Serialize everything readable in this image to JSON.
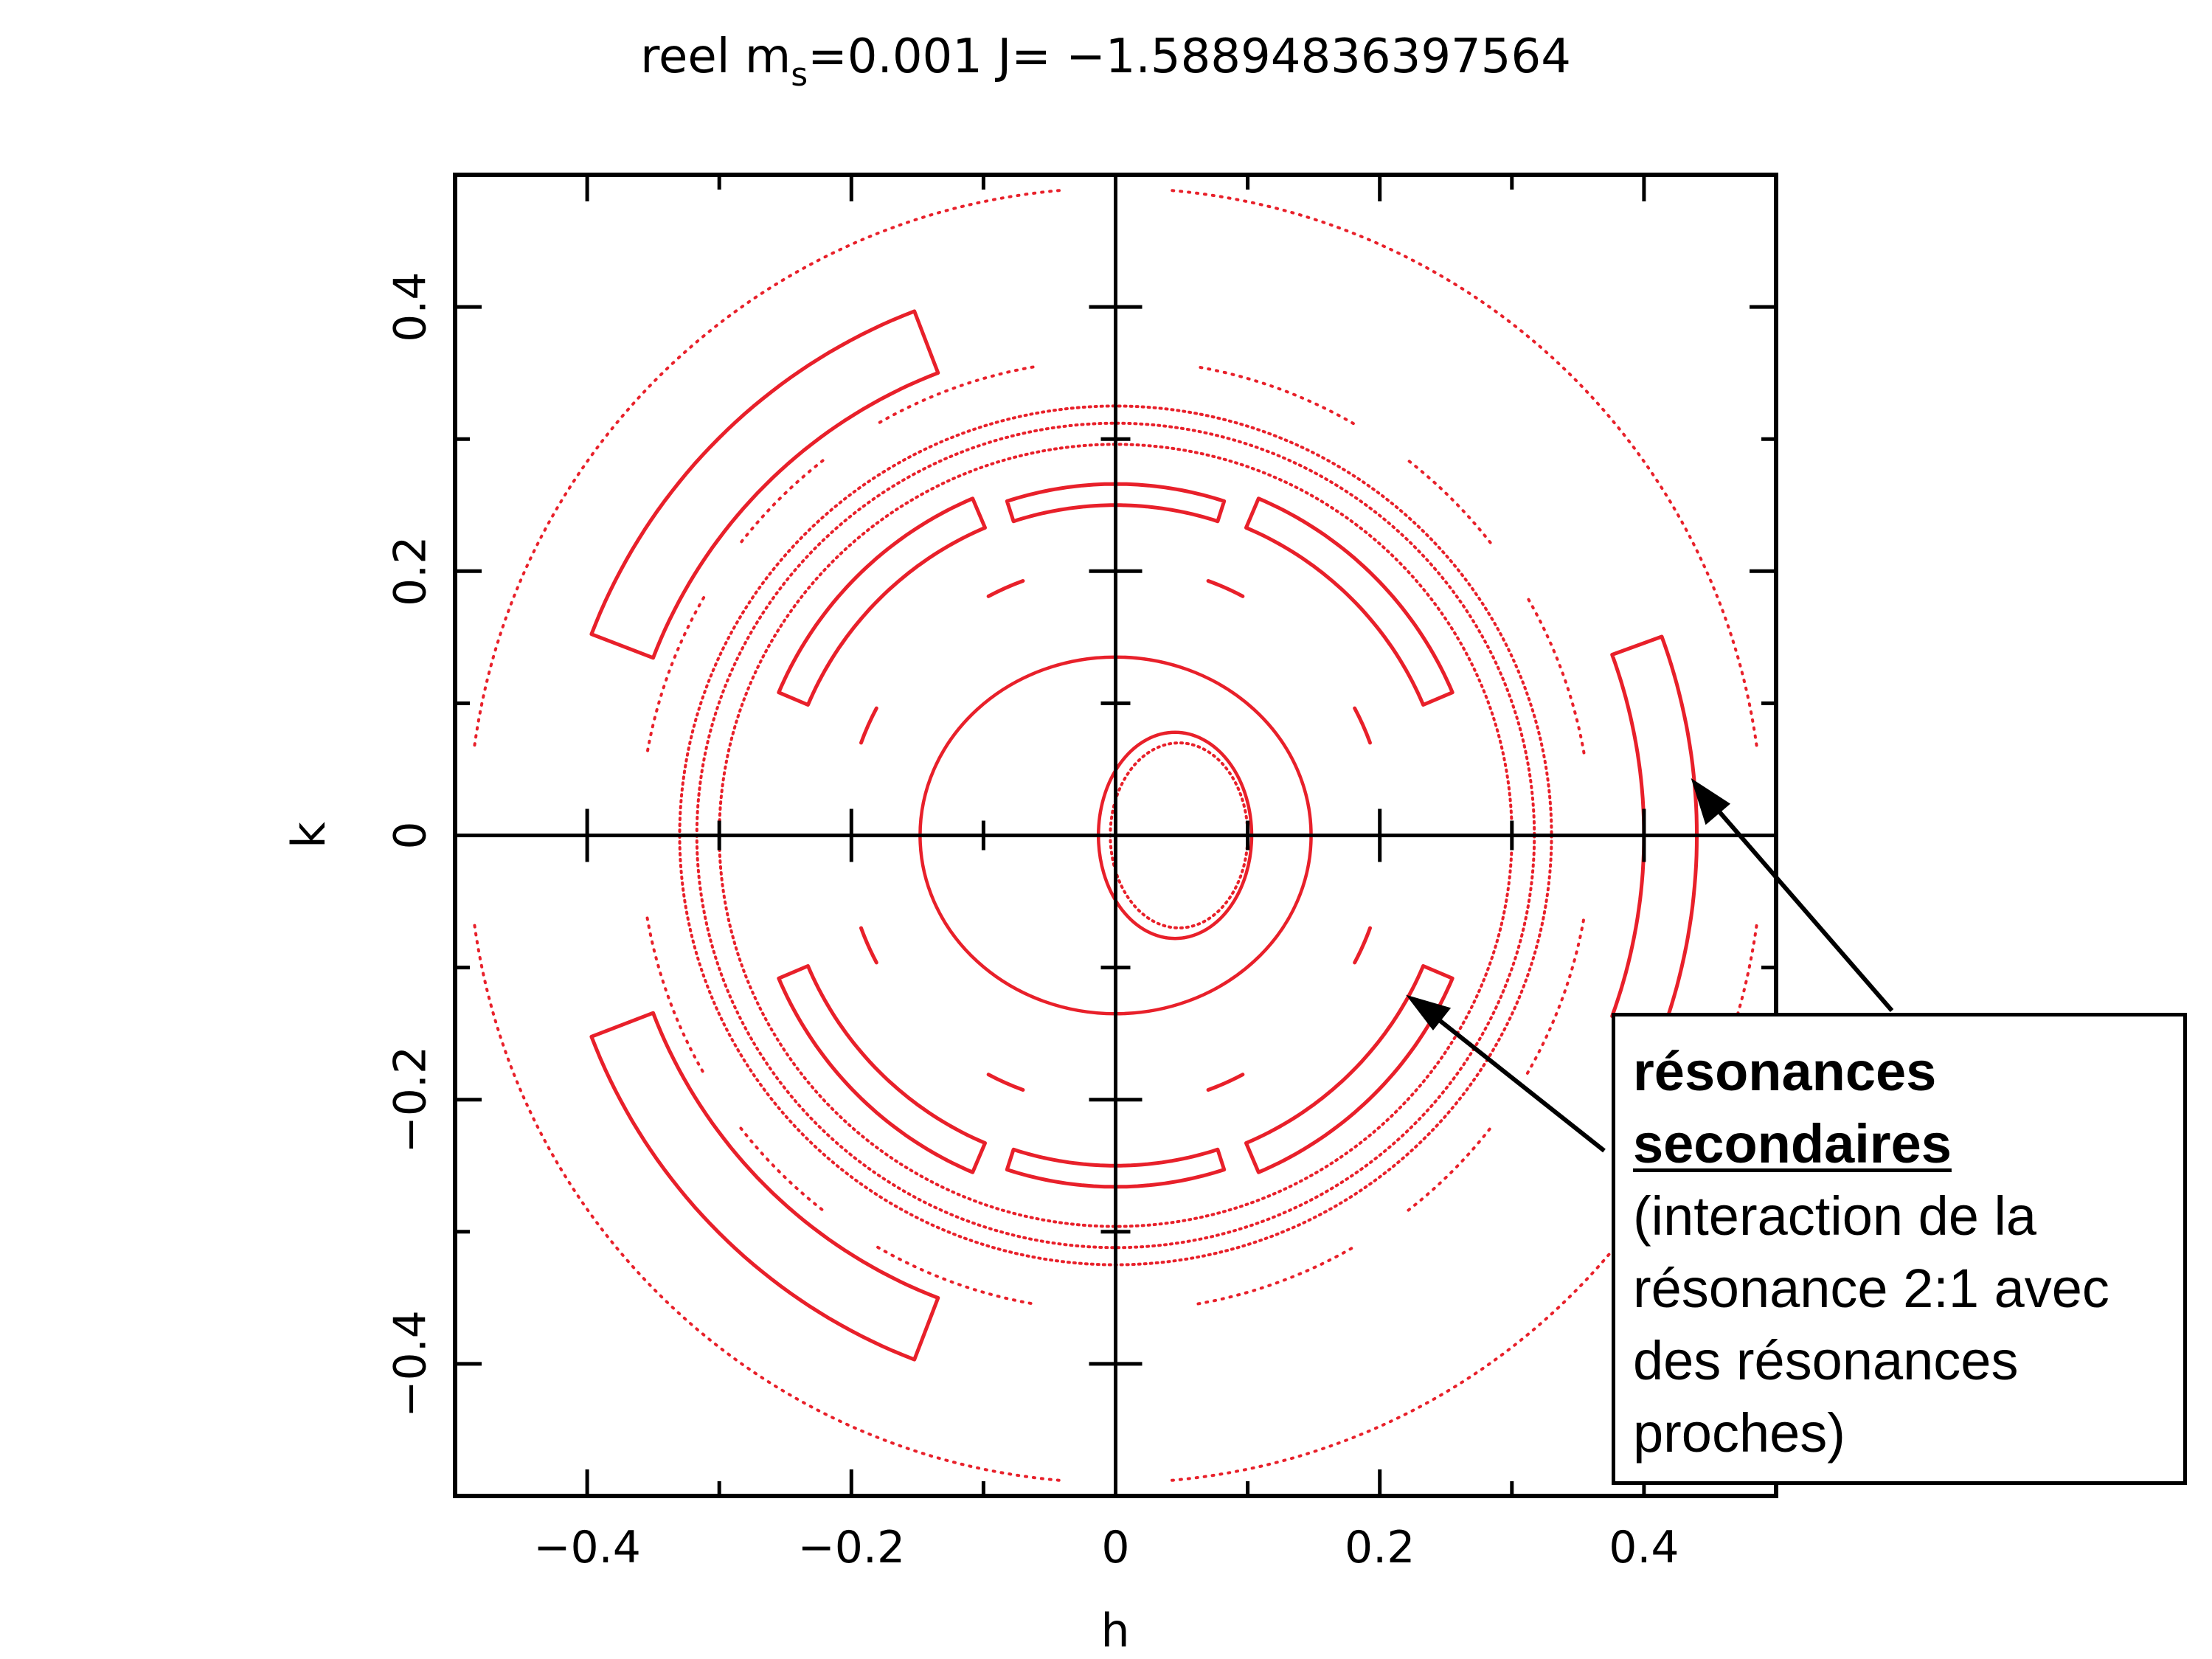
{
  "chart_data": {
    "type": "scatter",
    "title_prefix": "reel m",
    "title_sub": "s",
    "title_suffix": "=0.001 J= −1.58894836397564",
    "xlabel": "h",
    "ylabel": "k",
    "xlim": [
      -0.5,
      0.5
    ],
    "ylim": [
      -0.5,
      0.5
    ],
    "xticks": [
      {
        "value": -0.4,
        "label": "−0.4"
      },
      {
        "value": -0.2,
        "label": "−0.2"
      },
      {
        "value": 0,
        "label": "0"
      },
      {
        "value": 0.2,
        "label": "0.2"
      },
      {
        "value": 0.4,
        "label": "0.4"
      }
    ],
    "yticks": [
      {
        "value": -0.4,
        "label": "−0.4"
      },
      {
        "value": -0.2,
        "label": "−0.2"
      },
      {
        "value": 0,
        "label": "0"
      },
      {
        "value": 0.2,
        "label": "0.2"
      },
      {
        "value": 0.4,
        "label": "0.4"
      }
    ],
    "minor_ticks": [
      -0.3,
      -0.1,
      0.1,
      0.3
    ],
    "zero_lines": true,
    "grid": false,
    "color": "#e8202a",
    "series": [
      {
        "kind": "ellipse",
        "cx": 0.0,
        "cy": 0.0,
        "rx": 0.148,
        "ry": 0.135,
        "dotted": false
      },
      {
        "kind": "ellipse",
        "cx": 0.045,
        "cy": 0.0,
        "rx": 0.058,
        "ry": 0.078,
        "dotted": false
      },
      {
        "kind": "ellipse",
        "cx": 0.048,
        "cy": 0.0,
        "rx": 0.052,
        "ry": 0.07,
        "dotted": true
      },
      {
        "kind": "ellipse",
        "cx": 0.0,
        "cy": 0.0,
        "rx": 0.33,
        "ry": 0.325,
        "dotted": true
      },
      {
        "kind": "ellipse",
        "cx": 0.0,
        "cy": 0.0,
        "rx": 0.317,
        "ry": 0.312,
        "dotted": true
      },
      {
        "kind": "ellipse",
        "cx": 0.0,
        "cy": 0.0,
        "rx": 0.3,
        "ry": 0.296,
        "dotted": true
      },
      {
        "kind": "arcs",
        "r": 0.49,
        "dotted": true,
        "segments": [
          [
            8,
            85
          ],
          [
            95,
            172
          ],
          [
            188,
            265
          ],
          [
            275,
            352
          ]
        ]
      },
      {
        "kind": "arcs",
        "r": 0.36,
        "dotted": true,
        "segments": [
          [
            10,
            30
          ],
          [
            38,
            52
          ],
          [
            60,
            80
          ],
          [
            100,
            120
          ],
          [
            128,
            142
          ],
          [
            150,
            170
          ],
          [
            190,
            210
          ],
          [
            218,
            232
          ],
          [
            240,
            260
          ],
          [
            280,
            300
          ],
          [
            308,
            322
          ],
          [
            330,
            350
          ]
        ]
      },
      {
        "kind": "arcs",
        "r": 0.205,
        "dotted": false,
        "segments": [
          [
            20,
            28
          ],
          [
            62,
            70
          ],
          [
            110,
            118
          ],
          [
            152,
            160
          ],
          [
            200,
            208
          ],
          [
            242,
            250
          ],
          [
            290,
            298
          ],
          [
            332,
            340
          ]
        ]
      },
      {
        "kind": "crescents",
        "r": 0.265,
        "w": 0.012,
        "half": 22,
        "centers": [
          45,
          135,
          225,
          315
        ]
      },
      {
        "kind": "crescents",
        "r": 0.258,
        "w": 0.008,
        "half": 18,
        "centers": [
          90,
          270
        ]
      },
      {
        "kind": "crescents",
        "r": 0.4,
        "w": 0.025,
        "half": 24,
        "centers": [
          135,
          225
        ]
      },
      {
        "kind": "crescents",
        "r": 0.42,
        "w": 0.02,
        "half": 20,
        "centers": [
          0
        ]
      }
    ]
  },
  "annotation": {
    "line1": "résonances",
    "line2": "secondaires",
    "line3": "(interaction de la",
    "line4": "résonance 2:1 avec",
    "line5": "des résonances",
    "line6": "proches)"
  }
}
